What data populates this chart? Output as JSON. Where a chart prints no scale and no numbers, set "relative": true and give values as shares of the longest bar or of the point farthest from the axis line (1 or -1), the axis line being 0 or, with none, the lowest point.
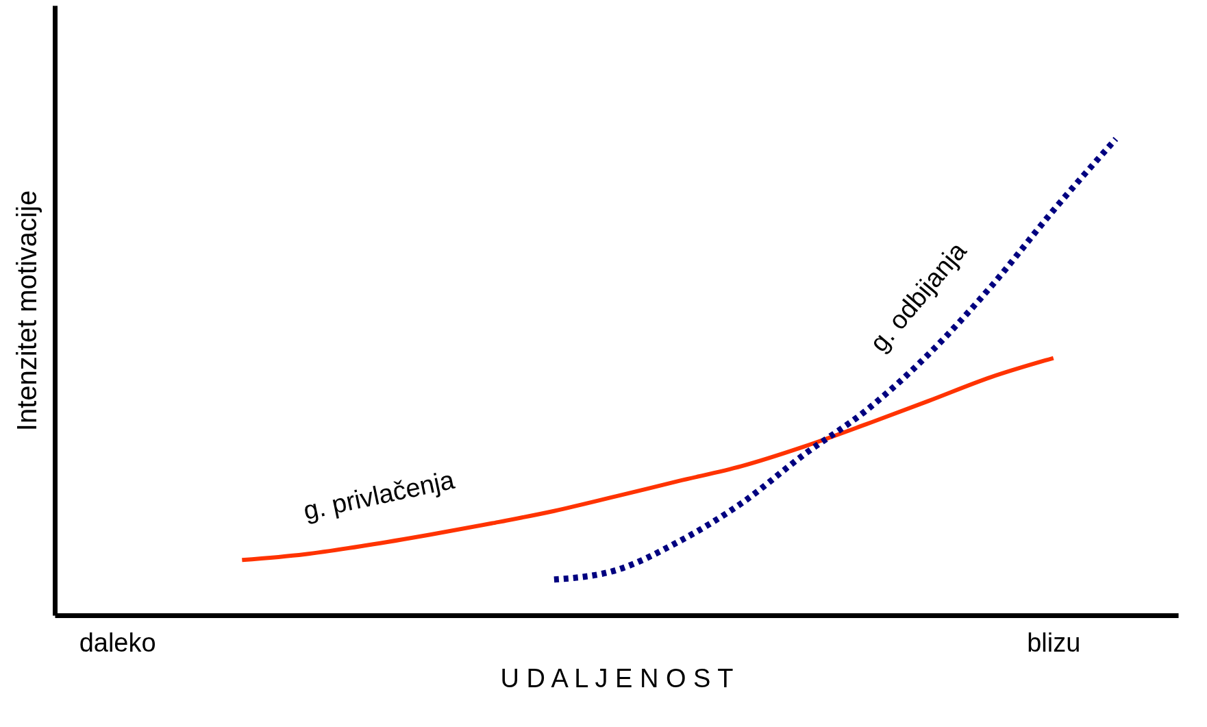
{
  "chart_data": {
    "type": "line",
    "relative": true,
    "xlabel": "U D A L J E N O S T",
    "ylabel": "Intenzitet motivacije",
    "grid": false,
    "categories": [
      "daleko",
      null,
      null,
      null,
      null,
      null,
      null,
      null,
      null,
      null,
      null,
      null,
      null,
      null,
      null,
      "blizu",
      null
    ],
    "series": [
      {
        "name": "g. privlačenja",
        "color": "#ff3300",
        "line_style": "solid",
        "values": [
          null,
          null,
          0.116,
          0.128,
          0.147,
          0.169,
          0.193,
          0.219,
          0.25,
          0.282,
          0.313,
          0.354,
          0.401,
          0.45,
          0.5,
          0.54,
          null
        ]
      },
      {
        "name": "g. odbijanja",
        "color": "#000080",
        "line_style": "dotted",
        "values": [
          null,
          null,
          null,
          null,
          null,
          null,
          null,
          0.075,
          0.095,
          0.155,
          0.235,
          0.337,
          0.43,
          0.548,
          0.69,
          0.85,
          1
        ]
      }
    ]
  }
}
